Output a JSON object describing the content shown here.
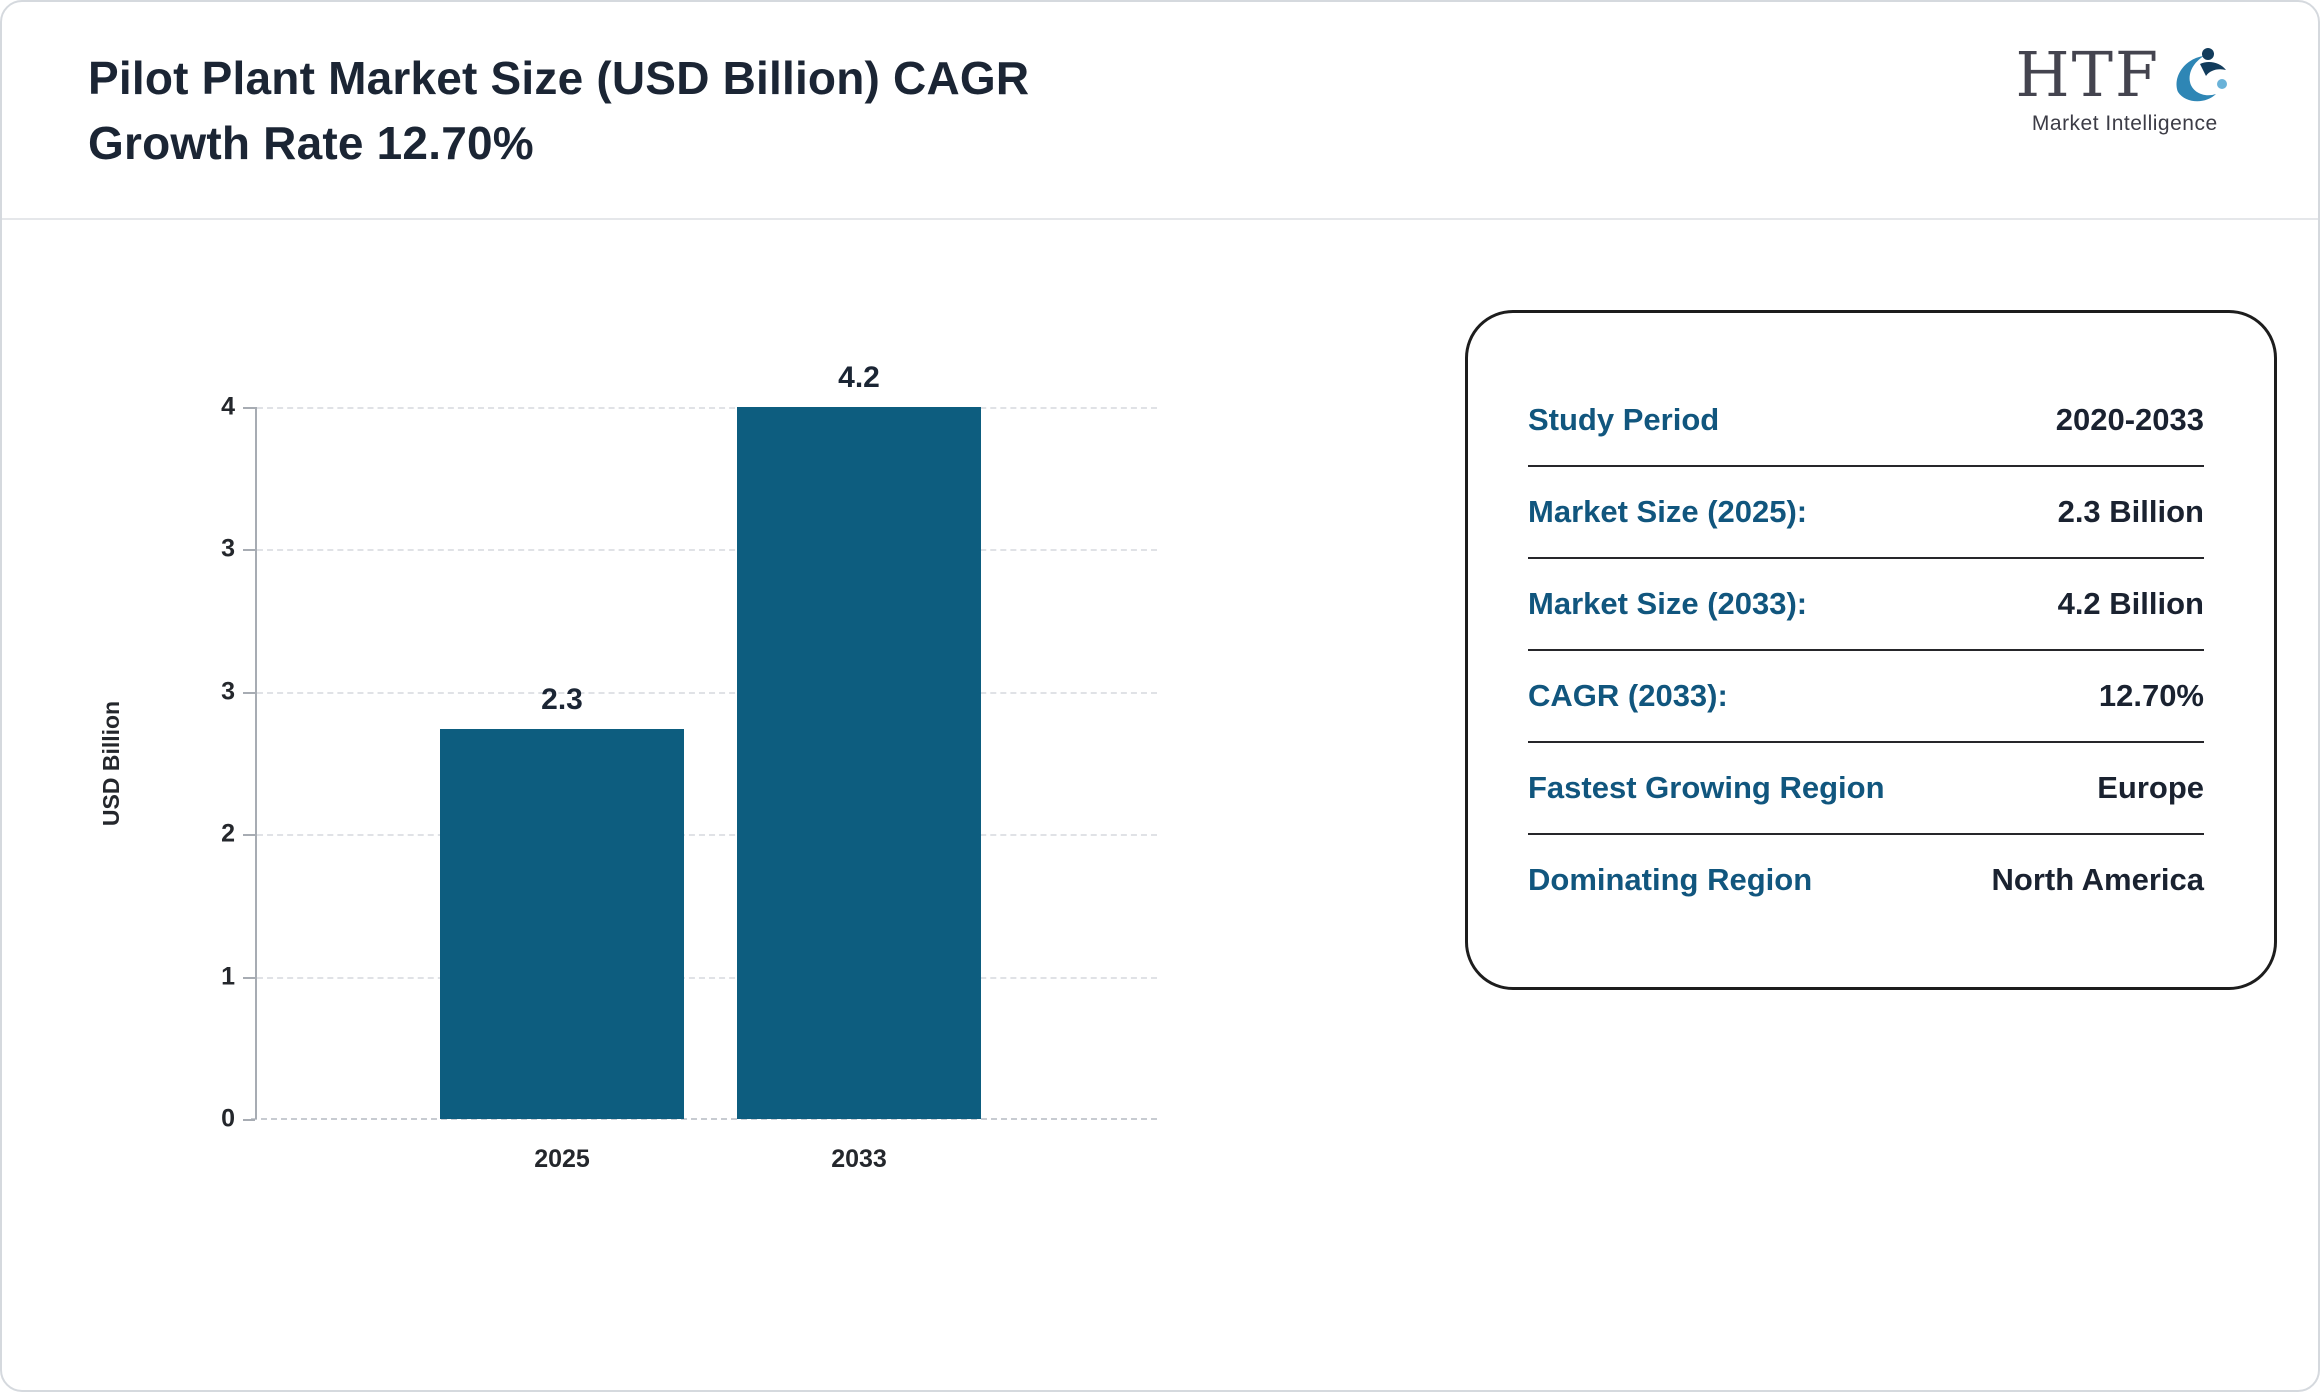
{
  "header": {
    "title_line1": "Pilot Plant Market Size (USD Billion) CAGR",
    "title_line2": "Growth Rate 12.70%"
  },
  "logo": {
    "text": "HTF",
    "subtext": "Market Intelligence"
  },
  "chart_data": {
    "type": "bar",
    "categories": [
      "2025",
      "2033"
    ],
    "values": [
      2.3,
      4.2
    ],
    "bar_labels": [
      "2.3",
      "4.2"
    ],
    "title": "Pilot Plant Market Size (USD Billion) CAGR Growth Rate 12.70%",
    "xlabel": "",
    "ylabel": "USD Billion",
    "ylim": [
      0,
      4.2
    ],
    "ytick_labels_top_to_bottom": [
      "4",
      "3",
      "3",
      "2",
      "1",
      "0"
    ],
    "grid": "dashed horizontal",
    "legend": "none",
    "bar_color": "#0d5d7f"
  },
  "panel": {
    "rows": [
      {
        "label": "Study Period",
        "value": "2020-2033"
      },
      {
        "label": "Market Size (2025):",
        "value": "2.3 Billion"
      },
      {
        "label": "Market Size (2033):",
        "value": "4.2 Billion"
      },
      {
        "label": "CAGR (2033):",
        "value": "12.70%"
      },
      {
        "label": "Fastest Growing Region",
        "value": "Europe"
      },
      {
        "label": "Dominating Region",
        "value": "North America"
      }
    ]
  },
  "colors": {
    "bar": "#0d5d7f",
    "title_text": "#1b2534",
    "panel_label": "#11567e",
    "panel_value": "#1a2230"
  }
}
